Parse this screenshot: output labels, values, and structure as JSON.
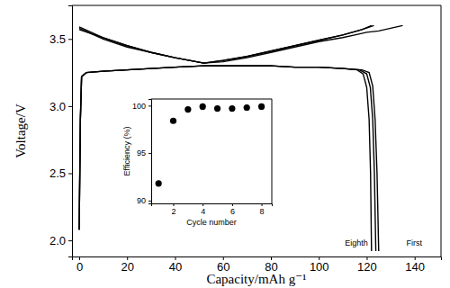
{
  "chart_data": [
    {
      "type": "line",
      "x_label": "Capacity/mAh g⁻¹",
      "y_label": "Voltage/V",
      "xlim": [
        -3,
        151
      ],
      "ylim": [
        1.88,
        3.75
      ],
      "xticks": [
        0,
        20,
        40,
        60,
        80,
        100,
        120,
        140
      ],
      "yticks": [
        {
          "value": 2,
          "label": "2.0"
        },
        2.5,
        {
          "value": 3,
          "label": "3.0"
        },
        3.5
      ],
      "series": [
        {
          "color": "#000000",
          "x": [
            0,
            5,
            10,
            20,
            30,
            40,
            52,
            60,
            70,
            80,
            90,
            100,
            110,
            115,
            120,
            125,
            130,
            135
          ],
          "values": [
            3.59,
            3.55,
            3.51,
            3.45,
            3.4,
            3.36,
            3.32,
            3.33,
            3.36,
            3.4,
            3.44,
            3.48,
            3.51,
            3.53,
            3.55,
            3.56,
            3.58,
            3.6
          ]
        },
        {
          "color": "#000000",
          "x": [
            0,
            5,
            10,
            20,
            30,
            40,
            52,
            60,
            70,
            80,
            90,
            100,
            110,
            118,
            123
          ],
          "values": [
            3.58,
            3.54,
            3.51,
            3.45,
            3.4,
            3.36,
            3.32,
            3.34,
            3.37,
            3.41,
            3.45,
            3.49,
            3.53,
            3.57,
            3.6
          ]
        },
        {
          "color": "#000000",
          "x": [
            0,
            5,
            10,
            20,
            30,
            40,
            52,
            60,
            70,
            80,
            90,
            100,
            110,
            118,
            122
          ],
          "values": [
            3.57,
            3.54,
            3.5,
            3.44,
            3.4,
            3.36,
            3.32,
            3.34,
            3.37,
            3.41,
            3.45,
            3.49,
            3.53,
            3.57,
            3.6
          ]
        },
        {
          "color": "#000000",
          "x": [
            0,
            0.5,
            1,
            3,
            10,
            20,
            30,
            40,
            52,
            60,
            70,
            80,
            90,
            100,
            110,
            118,
            121,
            122.5,
            123.5,
            124.3,
            125
          ],
          "values": [
            2.08,
            2.9,
            3.22,
            3.25,
            3.26,
            3.27,
            3.28,
            3.29,
            3.3,
            3.3,
            3.3,
            3.3,
            3.29,
            3.29,
            3.28,
            3.27,
            3.25,
            3.15,
            2.9,
            2.5,
            1.92
          ]
        },
        {
          "color": "#000000",
          "x": [
            0,
            0.5,
            1,
            3,
            10,
            20,
            30,
            40,
            52,
            60,
            70,
            80,
            90,
            100,
            110,
            117,
            120,
            121.5,
            122.5,
            123.2,
            123.8
          ],
          "values": [
            2.08,
            2.9,
            3.22,
            3.25,
            3.26,
            3.27,
            3.28,
            3.29,
            3.3,
            3.3,
            3.3,
            3.3,
            3.29,
            3.29,
            3.28,
            3.27,
            3.24,
            3.14,
            2.9,
            2.5,
            1.92
          ]
        },
        {
          "color": "#000000",
          "x": [
            0,
            0.5,
            1,
            3,
            10,
            20,
            30,
            40,
            52,
            60,
            70,
            80,
            90,
            100,
            110,
            116,
            118.5,
            120,
            121,
            121.6,
            122
          ],
          "values": [
            2.08,
            2.9,
            3.22,
            3.25,
            3.26,
            3.27,
            3.28,
            3.29,
            3.3,
            3.3,
            3.3,
            3.3,
            3.29,
            3.29,
            3.28,
            3.27,
            3.24,
            3.14,
            2.9,
            2.5,
            1.92
          ]
        }
      ],
      "annotations": [
        {
          "text": "Eighth"
        },
        {
          "text": "First"
        }
      ]
    },
    {
      "type": "scatter",
      "x_label": "Cycle number",
      "y_label": "Efficiency (%)",
      "x": [
        1,
        2,
        3,
        4,
        5,
        6,
        7,
        8
      ],
      "values": [
        91.8,
        98.4,
        99.6,
        99.9,
        99.7,
        99.7,
        99.8,
        99.9
      ],
      "xlim": [
        0.5,
        8.7
      ],
      "ylim": [
        89.7,
        100.7
      ],
      "xticks": [
        2,
        4,
        6,
        8
      ],
      "yticks": [
        90,
        95,
        100
      ],
      "color": "#000000",
      "marker": "circle"
    }
  ]
}
